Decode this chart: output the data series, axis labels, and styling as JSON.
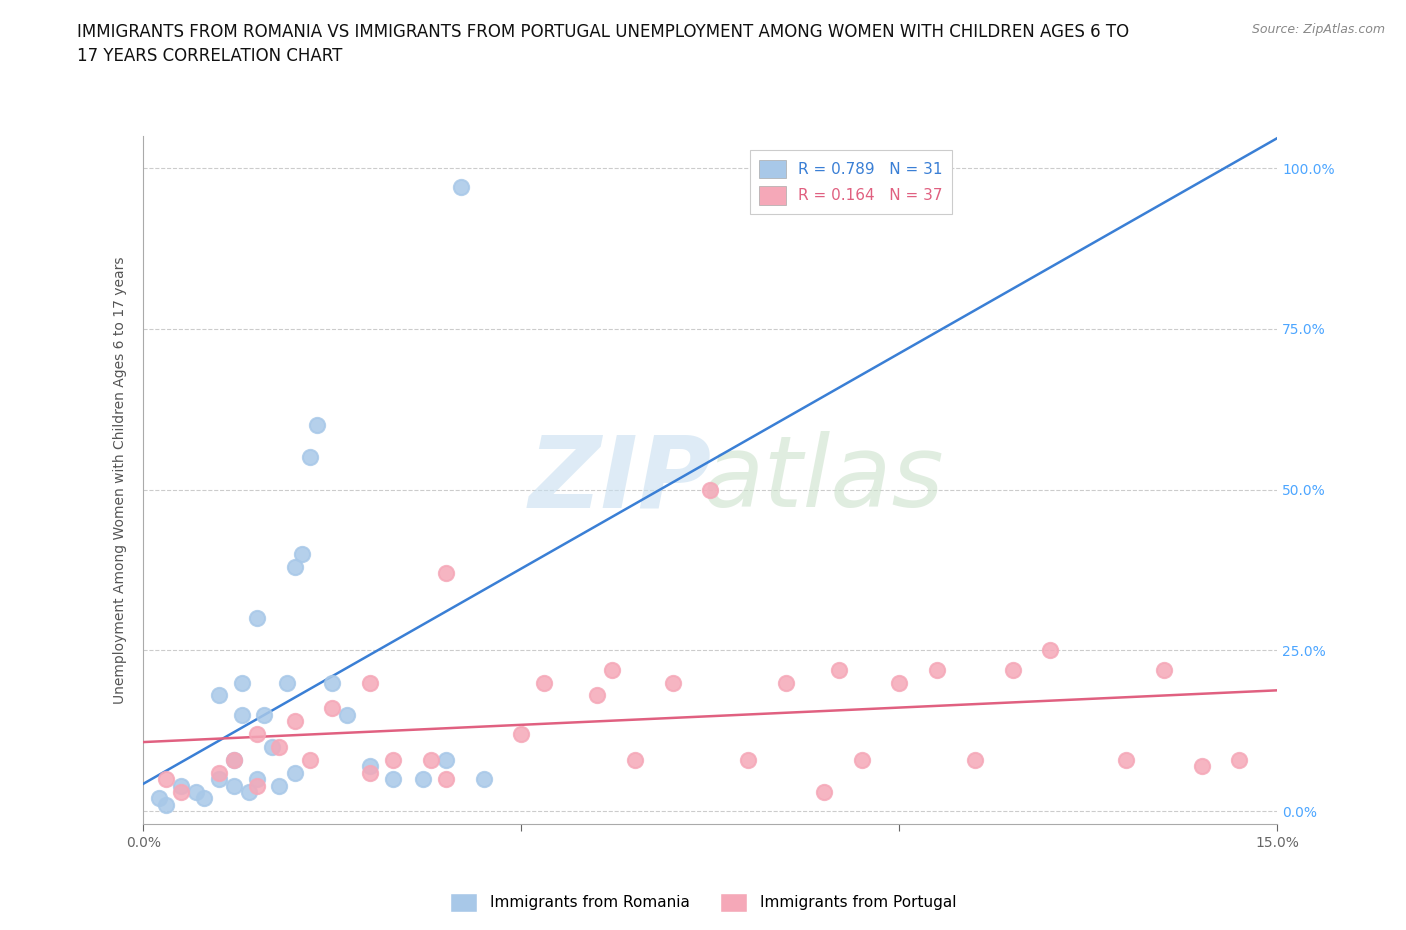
{
  "title": "IMMIGRANTS FROM ROMANIA VS IMMIGRANTS FROM PORTUGAL UNEMPLOYMENT AMONG WOMEN WITH CHILDREN AGES 6 TO\n17 YEARS CORRELATION CHART",
  "source_text": "Source: ZipAtlas.com",
  "ylabel": "Unemployment Among Women with Children Ages 6 to 17 years",
  "xlim": [
    0.0,
    0.15
  ],
  "ylim": [
    -0.02,
    1.05
  ],
  "ytick_vals": [
    0.0,
    0.25,
    0.5,
    0.75,
    1.0
  ],
  "romania_color": "#a8c8e8",
  "portugal_color": "#f5a8b8",
  "romania_R": 0.789,
  "romania_N": 31,
  "portugal_R": 0.164,
  "portugal_N": 37,
  "legend_label_romania": "Immigrants from Romania",
  "legend_label_portugal": "Immigrants from Portugal",
  "romania_scatter_x": [
    0.002,
    0.003,
    0.005,
    0.007,
    0.008,
    0.01,
    0.01,
    0.012,
    0.012,
    0.013,
    0.013,
    0.014,
    0.015,
    0.015,
    0.016,
    0.017,
    0.018,
    0.019,
    0.02,
    0.02,
    0.021,
    0.022,
    0.023,
    0.025,
    0.027,
    0.03,
    0.033,
    0.037,
    0.04,
    0.042,
    0.045
  ],
  "romania_scatter_y": [
    0.02,
    0.01,
    0.04,
    0.03,
    0.02,
    0.05,
    0.18,
    0.04,
    0.08,
    0.15,
    0.2,
    0.03,
    0.05,
    0.3,
    0.15,
    0.1,
    0.04,
    0.2,
    0.06,
    0.38,
    0.4,
    0.55,
    0.6,
    0.2,
    0.15,
    0.07,
    0.05,
    0.05,
    0.08,
    0.97,
    0.05
  ],
  "portugal_scatter_x": [
    0.003,
    0.005,
    0.01,
    0.012,
    0.015,
    0.015,
    0.018,
    0.02,
    0.022,
    0.025,
    0.03,
    0.03,
    0.033,
    0.038,
    0.04,
    0.04,
    0.05,
    0.053,
    0.06,
    0.062,
    0.065,
    0.07,
    0.075,
    0.08,
    0.085,
    0.09,
    0.092,
    0.095,
    0.1,
    0.105,
    0.11,
    0.115,
    0.12,
    0.13,
    0.135,
    0.14,
    0.145
  ],
  "portugal_scatter_y": [
    0.05,
    0.03,
    0.06,
    0.08,
    0.04,
    0.12,
    0.1,
    0.14,
    0.08,
    0.16,
    0.06,
    0.2,
    0.08,
    0.08,
    0.05,
    0.37,
    0.12,
    0.2,
    0.18,
    0.22,
    0.08,
    0.2,
    0.5,
    0.08,
    0.2,
    0.03,
    0.22,
    0.08,
    0.2,
    0.22,
    0.08,
    0.22,
    0.25,
    0.08,
    0.22,
    0.07,
    0.08
  ],
  "background_color": "#ffffff",
  "grid_color": "#cccccc",
  "title_fontsize": 12,
  "axis_label_fontsize": 10,
  "tick_fontsize": 10,
  "legend_fontsize": 11,
  "right_ytick_color": "#4da6ff",
  "romania_line_color": "#3a7fd5",
  "portugal_line_color": "#e06080"
}
